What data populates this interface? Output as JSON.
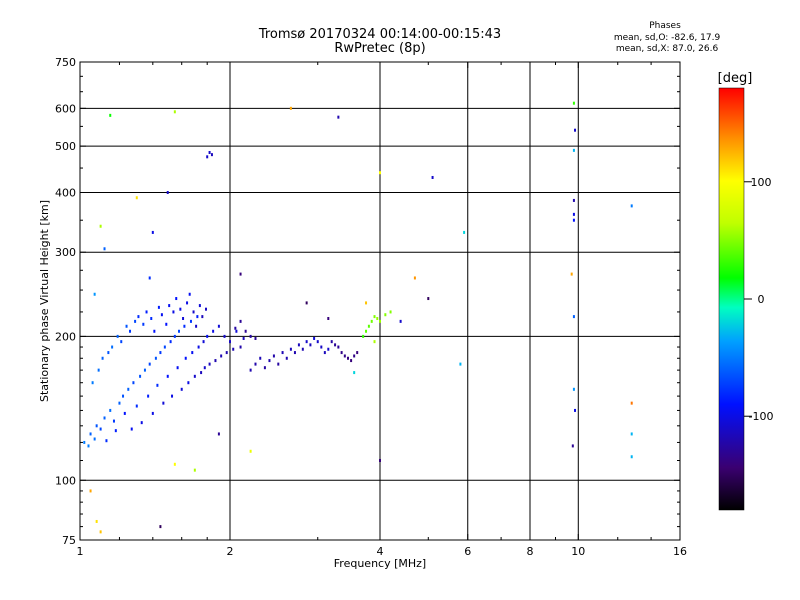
{
  "header": {
    "title_line1": "Tromsø 20170324 00:14:00-00:15:43",
    "title_line2": "RwPretec (8p)",
    "phases_heading": "Phases",
    "phases_o": "mean, sd,O: -82.6, 17.9",
    "phases_x": "mean, sd,X: 87.0, 26.6"
  },
  "chart_data": {
    "type": "scatter",
    "xlabel": "Frequency [MHz]",
    "ylabel": "Stationary phase Virtual Height [km]",
    "xscale": "log",
    "yscale": "log",
    "xlim": [
      1,
      16
    ],
    "ylim": [
      75,
      750
    ],
    "x_ticks": [
      1,
      2,
      4,
      6,
      8,
      10,
      16
    ],
    "y_ticks": [
      75,
      100,
      200,
      300,
      400,
      500,
      600,
      750
    ],
    "x_gridlines": [
      2,
      4,
      6,
      8,
      10
    ],
    "y_gridlines": [
      100,
      200,
      300,
      400,
      500,
      600
    ],
    "colorbar": {
      "label": "[deg]",
      "range": [
        -180,
        180
      ],
      "ticks": [
        -100,
        0,
        100
      ]
    },
    "points": [
      [
        1.02,
        120,
        -50
      ],
      [
        1.04,
        118,
        -50
      ],
      [
        1.05,
        125,
        -60
      ],
      [
        1.07,
        122,
        -55
      ],
      [
        1.08,
        130,
        -65
      ],
      [
        1.1,
        128,
        -70
      ],
      [
        1.12,
        135,
        -60
      ],
      [
        1.13,
        121,
        -80
      ],
      [
        1.15,
        140,
        -55
      ],
      [
        1.17,
        133,
        -75
      ],
      [
        1.18,
        127,
        -85
      ],
      [
        1.2,
        145,
        -60
      ],
      [
        1.22,
        150,
        -65
      ],
      [
        1.23,
        138,
        -90
      ],
      [
        1.25,
        155,
        -60
      ],
      [
        1.27,
        128,
        -95
      ],
      [
        1.28,
        160,
        -70
      ],
      [
        1.3,
        143,
        -80
      ],
      [
        1.32,
        165,
        -65
      ],
      [
        1.33,
        132,
        -100
      ],
      [
        1.35,
        170,
        -60
      ],
      [
        1.37,
        150,
        -85
      ],
      [
        1.38,
        175,
        -70
      ],
      [
        1.4,
        138,
        -100
      ],
      [
        1.42,
        180,
        -65
      ],
      [
        1.43,
        158,
        -80
      ],
      [
        1.45,
        185,
        -75
      ],
      [
        1.47,
        145,
        -105
      ],
      [
        1.48,
        190,
        -70
      ],
      [
        1.5,
        165,
        -90
      ],
      [
        1.52,
        195,
        -80
      ],
      [
        1.53,
        150,
        -100
      ],
      [
        1.55,
        200,
        -75
      ],
      [
        1.57,
        172,
        -95
      ],
      [
        1.58,
        205,
        -70
      ],
      [
        1.6,
        155,
        -105
      ],
      [
        1.62,
        210,
        -80
      ],
      [
        1.63,
        180,
        -90
      ],
      [
        1.65,
        160,
        -100
      ],
      [
        1.67,
        215,
        -75
      ],
      [
        1.68,
        185,
        -95
      ],
      [
        1.7,
        165,
        -110
      ],
      [
        1.72,
        220,
        -85
      ],
      [
        1.73,
        190,
        -100
      ],
      [
        1.75,
        168,
        -115
      ],
      [
        1.77,
        195,
        -105
      ],
      [
        1.78,
        172,
        -110
      ],
      [
        1.8,
        200,
        -95
      ],
      [
        1.82,
        175,
        -115
      ],
      [
        1.85,
        205,
        -100
      ],
      [
        1.87,
        178,
        -120
      ],
      [
        1.9,
        210,
        -105
      ],
      [
        1.92,
        182,
        -118
      ],
      [
        1.95,
        200,
        -110
      ],
      [
        1.97,
        185,
        -120
      ],
      [
        2.0,
        195,
        -112
      ],
      [
        2.03,
        188,
        -118
      ],
      [
        2.06,
        205,
        -105
      ],
      [
        2.1,
        190,
        -122
      ],
      [
        2.13,
        198,
        -115
      ],
      [
        1.06,
        160,
        -50
      ],
      [
        1.09,
        170,
        -55
      ],
      [
        1.11,
        180,
        -60
      ],
      [
        1.14,
        185,
        -65
      ],
      [
        1.16,
        190,
        -55
      ],
      [
        1.19,
        200,
        -60
      ],
      [
        1.21,
        195,
        -70
      ],
      [
        1.24,
        210,
        -65
      ],
      [
        1.26,
        205,
        -75
      ],
      [
        1.29,
        215,
        -70
      ],
      [
        1.31,
        220,
        -80
      ],
      [
        1.34,
        212,
        -75
      ],
      [
        1.36,
        225,
        -85
      ],
      [
        1.39,
        218,
        -80
      ],
      [
        1.41,
        205,
        -90
      ],
      [
        1.44,
        230,
        -85
      ],
      [
        1.46,
        222,
        -95
      ],
      [
        1.49,
        212,
        -90
      ],
      [
        1.51,
        232,
        -95
      ],
      [
        1.54,
        225,
        -100
      ],
      [
        1.56,
        240,
        -90
      ],
      [
        1.59,
        228,
        -100
      ],
      [
        1.61,
        218,
        -105
      ],
      [
        1.64,
        235,
        -100
      ],
      [
        1.66,
        245,
        -95
      ],
      [
        1.69,
        225,
        -110
      ],
      [
        1.71,
        210,
        -110
      ],
      [
        1.74,
        232,
        -105
      ],
      [
        1.76,
        220,
        -115
      ],
      [
        1.79,
        228,
        -112
      ],
      [
        2.2,
        170,
        -120
      ],
      [
        2.25,
        175,
        -122
      ],
      [
        2.3,
        180,
        -118
      ],
      [
        2.35,
        172,
        -125
      ],
      [
        2.4,
        178,
        -120
      ],
      [
        2.45,
        182,
        -122
      ],
      [
        2.5,
        175,
        -125
      ],
      [
        2.55,
        185,
        -118
      ],
      [
        2.6,
        180,
        -120
      ],
      [
        2.65,
        188,
        -115
      ],
      [
        2.7,
        185,
        -120
      ],
      [
        2.75,
        192,
        -115
      ],
      [
        2.8,
        188,
        -118
      ],
      [
        2.85,
        195,
        -110
      ],
      [
        2.9,
        192,
        -115
      ],
      [
        2.95,
        198,
        -105
      ],
      [
        3.0,
        195,
        -110
      ],
      [
        3.05,
        190,
        -112
      ],
      [
        3.1,
        185,
        -115
      ],
      [
        3.15,
        188,
        -110
      ],
      [
        3.2,
        195,
        -125
      ],
      [
        3.25,
        192,
        -130
      ],
      [
        3.3,
        190,
        -130
      ],
      [
        3.35,
        185,
        -135
      ],
      [
        3.4,
        182,
        -135
      ],
      [
        3.45,
        180,
        -138
      ],
      [
        3.5,
        178,
        -140
      ],
      [
        3.55,
        182,
        -135
      ],
      [
        3.6,
        185,
        -140
      ],
      [
        3.7,
        200,
        30
      ],
      [
        3.75,
        205,
        40
      ],
      [
        3.8,
        210,
        40
      ],
      [
        3.85,
        215,
        45
      ],
      [
        3.9,
        220,
        50
      ],
      [
        3.95,
        218,
        55
      ],
      [
        4.0,
        215,
        55
      ],
      [
        4.1,
        222,
        50
      ],
      [
        4.2,
        225,
        50
      ],
      [
        4.4,
        215,
        -110
      ],
      [
        2.15,
        205,
        -130
      ],
      [
        2.2,
        200,
        -125
      ],
      [
        2.25,
        198,
        -128
      ],
      [
        2.1,
        215,
        -130
      ],
      [
        2.05,
        208,
        -125
      ],
      [
        1.15,
        580,
        20
      ],
      [
        1.55,
        590,
        60
      ],
      [
        1.8,
        475,
        -110
      ],
      [
        1.82,
        485,
        -110
      ],
      [
        1.84,
        480,
        -115
      ],
      [
        2.1,
        270,
        -140
      ],
      [
        2.65,
        600,
        130
      ],
      [
        3.3,
        575,
        -120
      ],
      [
        4.0,
        440,
        100
      ],
      [
        5.1,
        430,
        -110
      ],
      [
        5.9,
        330,
        -20
      ],
      [
        4.7,
        265,
        135
      ],
      [
        5.0,
        240,
        -150
      ],
      [
        5.8,
        175,
        -30
      ],
      [
        4.0,
        110,
        -140
      ],
      [
        1.45,
        80,
        -150
      ],
      [
        2.2,
        115,
        90
      ],
      [
        1.9,
        125,
        -130
      ],
      [
        1.7,
        105,
        60
      ],
      [
        1.55,
        108,
        100
      ],
      [
        1.05,
        95,
        130
      ],
      [
        1.08,
        82,
        110
      ],
      [
        1.1,
        78,
        120
      ],
      [
        1.3,
        390,
        110
      ],
      [
        1.4,
        330,
        -100
      ],
      [
        1.5,
        400,
        -110
      ],
      [
        1.12,
        305,
        -60
      ],
      [
        1.1,
        340,
        60
      ],
      [
        1.07,
        245,
        -40
      ],
      [
        1.38,
        265,
        -80
      ],
      [
        9.7,
        270,
        130
      ],
      [
        9.8,
        615,
        30
      ],
      [
        9.85,
        540,
        -110
      ],
      [
        9.8,
        490,
        -30
      ],
      [
        9.8,
        385,
        -120
      ],
      [
        9.8,
        360,
        -100
      ],
      [
        9.8,
        350,
        -90
      ],
      [
        9.8,
        220,
        -60
      ],
      [
        9.8,
        155,
        -40
      ],
      [
        9.85,
        140,
        -100
      ],
      [
        9.75,
        118,
        -130
      ],
      [
        12.8,
        375,
        -50
      ],
      [
        12.8,
        145,
        145
      ],
      [
        12.8,
        125,
        -30
      ],
      [
        12.8,
        112,
        -30
      ],
      [
        3.75,
        235,
        120
      ],
      [
        3.55,
        168,
        -20
      ],
      [
        3.9,
        195,
        60
      ],
      [
        2.85,
        235,
        -150
      ],
      [
        3.15,
        218,
        -140
      ]
    ]
  }
}
